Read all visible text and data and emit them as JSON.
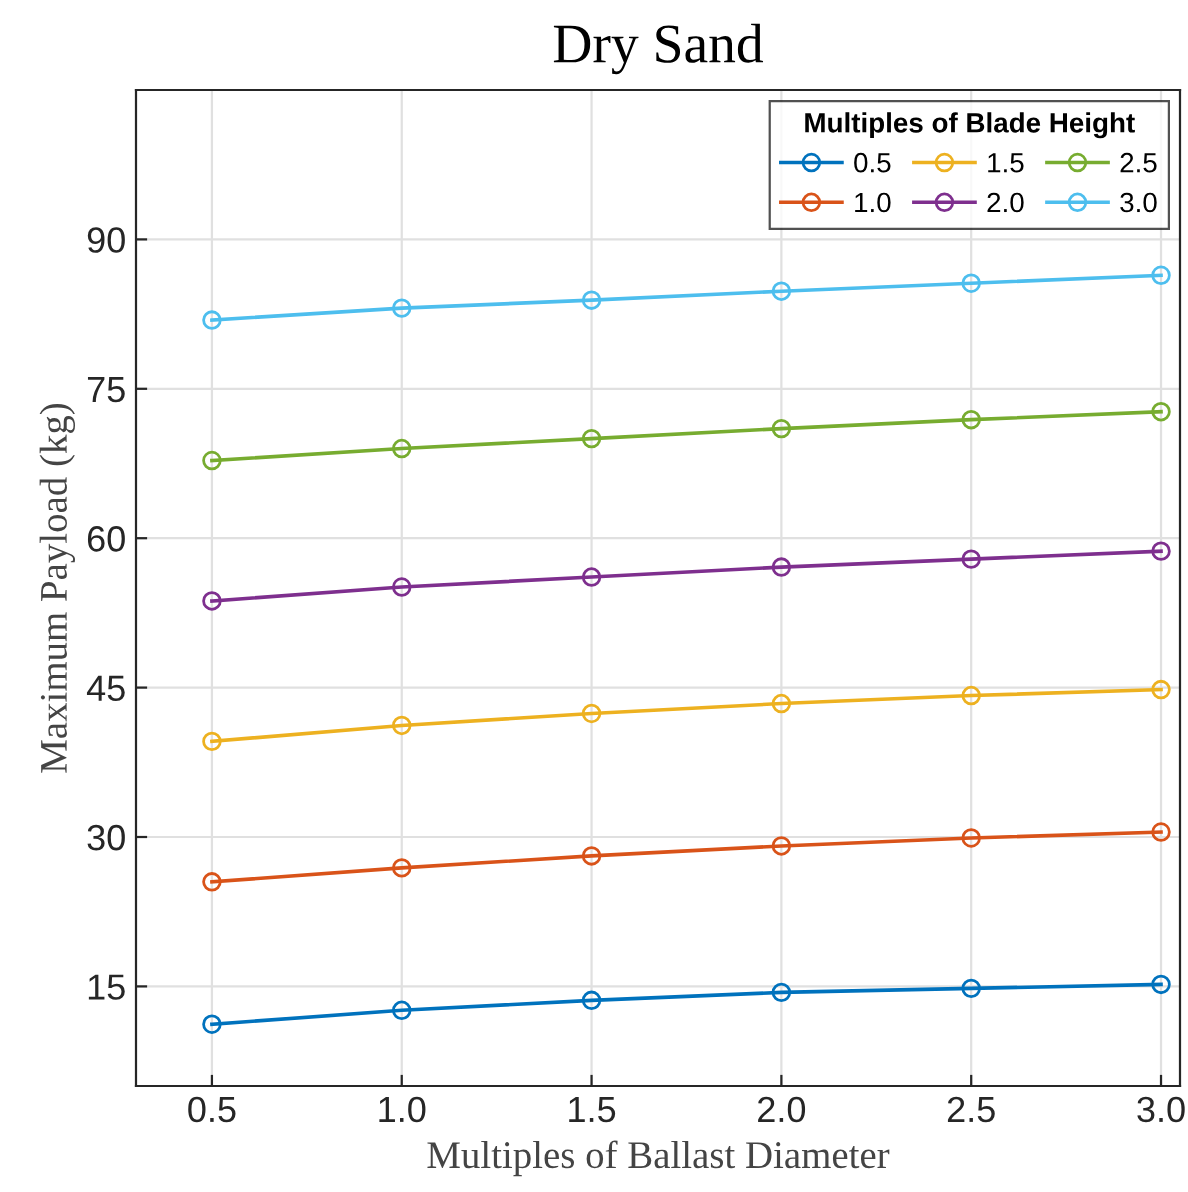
{
  "chart_data": {
    "type": "line",
    "title": "Dry Sand",
    "xlabel": "Multiples of Ballast Diameter",
    "ylabel": "Maximum Payload (kg)",
    "legend_title": "Multiples of Blade Height",
    "x": [
      0.5,
      1.0,
      1.5,
      2.0,
      2.5,
      3.0
    ],
    "series": [
      {
        "name": "0.5",
        "color": "#0072bd",
        "values": [
          11.2,
          12.6,
          13.6,
          14.4,
          14.8,
          15.2
        ]
      },
      {
        "name": "1.0",
        "color": "#d95319",
        "values": [
          25.5,
          26.9,
          28.1,
          29.1,
          29.9,
          30.5
        ]
      },
      {
        "name": "1.5",
        "color": "#edb120",
        "values": [
          39.6,
          41.2,
          42.4,
          43.4,
          44.2,
          44.8
        ]
      },
      {
        "name": "2.0",
        "color": "#7e2f8e",
        "values": [
          53.7,
          55.1,
          56.1,
          57.1,
          57.9,
          58.7
        ]
      },
      {
        "name": "2.5",
        "color": "#77ac30",
        "values": [
          67.8,
          69.0,
          70.0,
          71.0,
          71.9,
          72.7
        ]
      },
      {
        "name": "3.0",
        "color": "#4dbeee",
        "values": [
          81.9,
          83.1,
          83.9,
          84.8,
          85.6,
          86.4
        ]
      }
    ],
    "xlim": [
      0.3,
      3.05
    ],
    "ylim": [
      5,
      105
    ],
    "xticks": [
      {
        "value": 0.5,
        "label": "0.5"
      },
      {
        "value": 1.0,
        "label": "1.0"
      },
      {
        "value": 1.5,
        "label": "1.5"
      },
      {
        "value": 2.0,
        "label": "2.0"
      },
      {
        "value": 2.5,
        "label": "2.5"
      },
      {
        "value": 3.0,
        "label": "3.0"
      }
    ],
    "yticks": [
      15,
      30,
      45,
      60,
      75,
      90
    ],
    "grid": true,
    "legend": "top right",
    "marker": "circle",
    "line_style": "solid"
  }
}
